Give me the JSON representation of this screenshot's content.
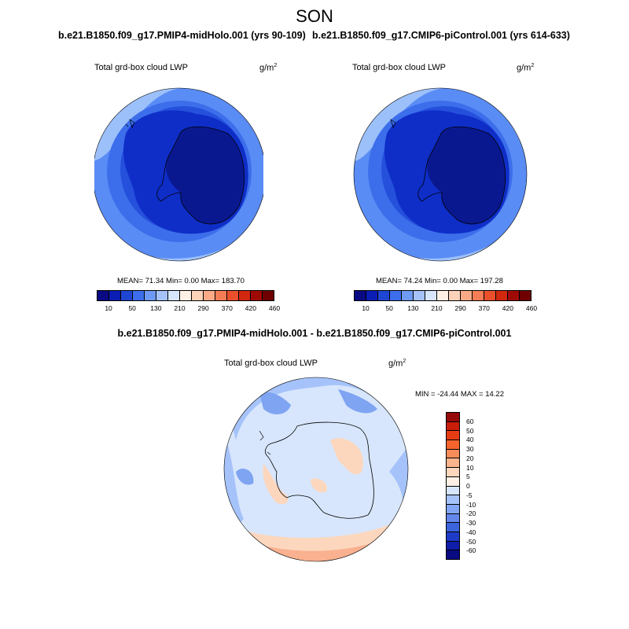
{
  "title": "SON",
  "case_a": "b.e21.B1850.f09_g17.PMIP4-midHolo.001 (yrs 90-109)",
  "case_b": "b.e21.B1850.f09_g17.CMIP6-piControl.001 (yrs 614-633)",
  "diff_title": "b.e21.B1850.f09_g17.PMIP4-midHolo.001 - b.e21.B1850.f09_g17.CMIP6-piControl.001",
  "panels": [
    {
      "variable": "Total grd-box cloud LWP",
      "unit": "g/m",
      "unit_sup": "2",
      "stats": "MEAN=  71.34  Min=   0.00  Max= 183.70"
    },
    {
      "variable": "Total grd-box cloud LWP",
      "unit": "g/m",
      "unit_sup": "2",
      "stats": "MEAN=  74.24  Min=   0.00  Max= 197.28"
    },
    {
      "variable": "Total grd-box cloud LWP",
      "unit": "g/m",
      "unit_sup": "2",
      "stats": "MIN = -24.44 MAX =  14.22"
    }
  ],
  "abs_colorbar": {
    "labels": [
      "10",
      "50",
      "130",
      "210",
      "290",
      "370",
      "420",
      "460"
    ],
    "colors": [
      "#0a0a82",
      "#0a1eb4",
      "#1e46d2",
      "#3c6eeb",
      "#6e9af5",
      "#a5c3fa",
      "#d7e6fc",
      "#fff0e6",
      "#fcd2b9",
      "#faaa87",
      "#f57d55",
      "#eb502d",
      "#d2280f",
      "#a00a05",
      "#6e0000"
    ]
  },
  "diff_colorbar": {
    "labels": [
      "60",
      "50",
      "40",
      "30",
      "20",
      "10",
      "5",
      "0",
      "-5",
      "-10",
      "-20",
      "-30",
      "-40",
      "-50",
      "-60"
    ],
    "colors": [
      "#960a0a",
      "#c81e0a",
      "#e63c14",
      "#f5642d",
      "#fa8c5a",
      "#fcb48c",
      "#fcd7be",
      "#fff0e6",
      "#d7e6fc",
      "#a5c3fa",
      "#82a5f5",
      "#6487eb",
      "#3c64dc",
      "#1e3cc8",
      "#0f1eaa",
      "#0a0a82"
    ]
  },
  "map_colors": {
    "outer": "#5a8cf5",
    "ring_light": "#9cc0fa",
    "mid": "#3c6eeb",
    "inner": "#2550dc",
    "deep": "#0f2ec8",
    "core": "#0a1890",
    "diff_bg": "#d7e6fc",
    "diff_light_blue": "#a5c3fa",
    "diff_blue": "#7ea4f2",
    "diff_peach": "#fcd7be",
    "diff_orange": "#f9b190"
  }
}
